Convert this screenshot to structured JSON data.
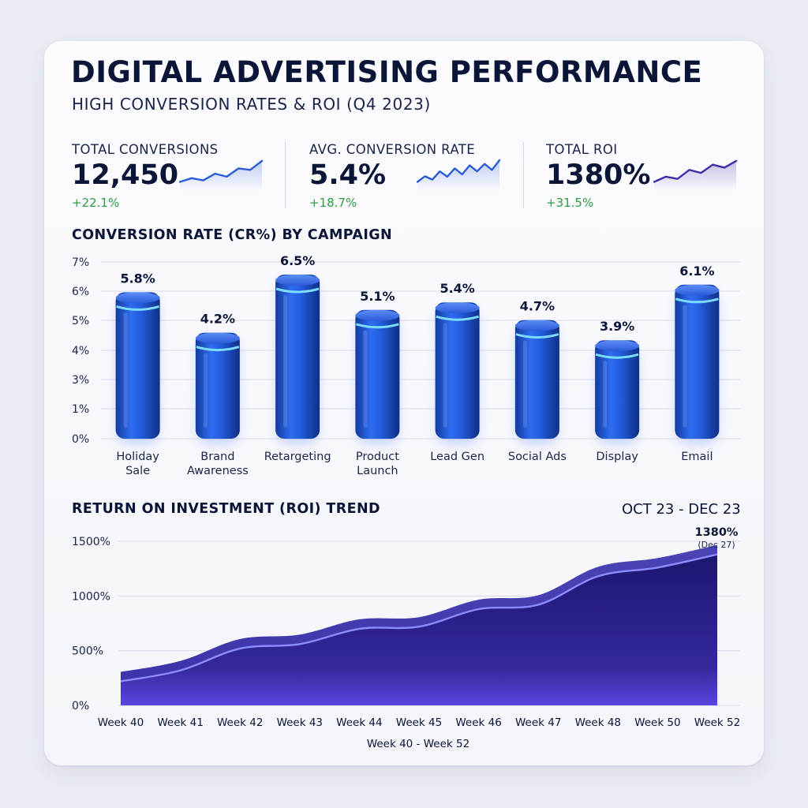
{
  "header": {
    "title": "DIGITAL ADVERTISING PERFORMANCE",
    "subtitle": "HIGH CONVERSION RATES & ROI (Q4 2023)"
  },
  "kpis": [
    {
      "label": "TOTAL CONVERSIONS",
      "value": "12,450",
      "delta": "+22.1%",
      "spark_color": "#2a5cd6",
      "spark_values": [
        2,
        3,
        2.4,
        4.2,
        3.4,
        5.6,
        5.2,
        7.6
      ]
    },
    {
      "label": "AVG. CONVERSION RATE",
      "value": "5.4%",
      "delta": "+18.7%",
      "spark_color": "#2a5cd6",
      "spark_values": [
        2,
        3.5,
        2.6,
        4.8,
        3.4,
        5.6,
        4,
        6.4,
        4.8,
        6.8,
        5.2,
        7.8
      ]
    },
    {
      "label": "TOTAL ROI",
      "value": "1380%",
      "delta": "+31.5%",
      "spark_color": "#3b2fa8",
      "spark_values": [
        2,
        3.4,
        2.8,
        5.2,
        4.4,
        6.6,
        5.8,
        7.6
      ]
    }
  ],
  "colors": {
    "delta_positive": "#2e9d44",
    "bar": "#1f4fd0",
    "bar_ring": "#7fe3ff",
    "area": "#2c1f8c",
    "area_line": "#8b8dff"
  },
  "chart_data": [
    {
      "type": "bar",
      "title": "CONVERSION RATE (CR%) BY CAMPAIGN",
      "categories": [
        "Holiday\nSale",
        "Brand\nAwareness",
        "Retargeting",
        "Product\nLaunch",
        "Lead Gen",
        "Social Ads",
        "Display",
        "Email"
      ],
      "values": [
        5.8,
        4.2,
        6.5,
        5.1,
        5.4,
        4.7,
        3.9,
        6.1
      ],
      "value_labels": [
        "5.8%",
        "4.2%",
        "6.5%",
        "5.1%",
        "5.4%",
        "4.7%",
        "3.9%",
        "6.1%"
      ],
      "ylim": [
        0,
        7
      ],
      "yticks": [
        "0%",
        "1%",
        "3%",
        "4%",
        "5%",
        "6%",
        "7%"
      ],
      "grid": true
    },
    {
      "type": "area",
      "title": "RETURN ON INVESTMENT (ROI) TREND",
      "date_range": "OCT 23 - DEC 23",
      "x": [
        "Week 40",
        "Week 41",
        "Week 42",
        "Week 43",
        "Week 44",
        "Week 45",
        "Week 46",
        "Week 47",
        "Week 48",
        "Week 50",
        "Week 52"
      ],
      "values": [
        220,
        320,
        520,
        560,
        700,
        720,
        880,
        920,
        1180,
        1260,
        1380
      ],
      "xlabel": "Week 40 - Week 52",
      "ylim": [
        0,
        1500
      ],
      "yticks": [
        "0%",
        "500%",
        "1000%",
        "1500%"
      ],
      "annotation": {
        "value": "1380%",
        "note": "(Dec 27)"
      },
      "grid": true
    }
  ]
}
